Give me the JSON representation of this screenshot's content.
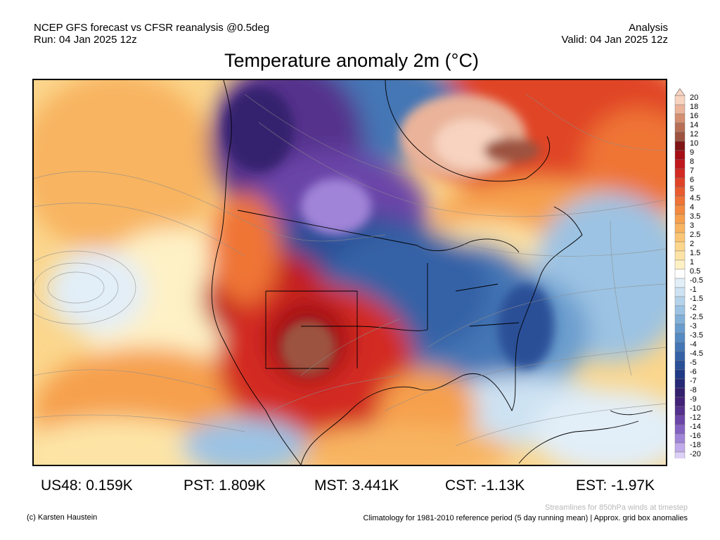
{
  "header": {
    "model_line": "NCEP GFS forecast vs CFSR reanalysis @0.5deg",
    "run_line": "Run: 04 Jan 2025 12z",
    "mode": "Analysis",
    "valid_line": "Valid: 04 Jan 2025 12z"
  },
  "title": "Temperature anomaly 2m (°C)",
  "colorbar": {
    "levels": [
      "20",
      "18",
      "16",
      "14",
      "12",
      "10",
      "9",
      "8",
      "7",
      "6",
      "5",
      "4.5",
      "4",
      "3.5",
      "3",
      "2.5",
      "2",
      "1.5",
      "1",
      "0.5",
      "-0.5",
      "-1",
      "-1.5",
      "-2",
      "-2.5",
      "-3",
      "-3.5",
      "-4",
      "-4.5",
      "-5",
      "-6",
      "-7",
      "-8",
      "-9",
      "-10",
      "-12",
      "-14",
      "-16",
      "-18",
      "-20"
    ],
    "colors": [
      "#f7d3c0",
      "#eab39a",
      "#d48f72",
      "#b86f56",
      "#9c5340",
      "#7f1515",
      "#a50f15",
      "#c0181c",
      "#d32a22",
      "#e04428",
      "#e85c30",
      "#ef7436",
      "#f38a40",
      "#f6a04e",
      "#f8b460",
      "#fac574",
      "#fbd68c",
      "#fde4a6",
      "#fef1c6",
      "#ffffff",
      "#e2eef8",
      "#cde2f2",
      "#b4d3eb",
      "#9cc3e3",
      "#82b0d9",
      "#6a9dce",
      "#558ac2",
      "#4476b5",
      "#3562a6",
      "#294f97",
      "#203a85",
      "#262976",
      "#34216e",
      "#432278",
      "#55308c",
      "#6b45a8",
      "#8462c2",
      "#a084d8",
      "#c0aae9",
      "#ddd0f7"
    ]
  },
  "stats": [
    {
      "label": "US48: 0.159K"
    },
    {
      "label": "PST: 1.809K"
    },
    {
      "label": "MST: 3.441K"
    },
    {
      "label": "CST: -1.13K"
    },
    {
      "label": "EST: -1.97K"
    }
  ],
  "footer": {
    "credit": "(c) Karsten Haustein",
    "streamlines_note": "Streamlines for 850hPa winds at timestep",
    "climatology_note": "Climatology for 1981-2010 reference period (5 day running mean) | Approx. grid box anomalies"
  }
}
